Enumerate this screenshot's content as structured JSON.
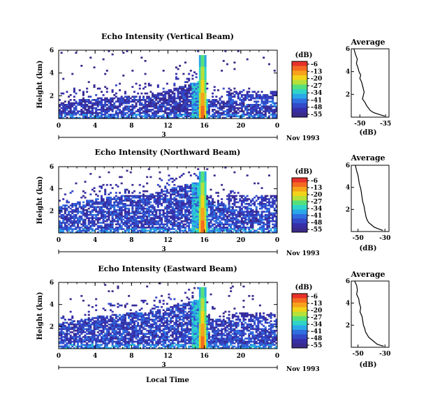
{
  "figure": {
    "x_axis_label": "Local Time",
    "date_label": "Nov 1993",
    "x_ticks": [
      "0",
      "4",
      "8",
      "12",
      "16",
      "20",
      "0"
    ],
    "x_sub_label": "3",
    "y_ticks": [
      "6",
      "4",
      "2"
    ],
    "y_axis_label": "Height (km)",
    "colorbar": {
      "unit": "(dB)",
      "ticks": [
        "-6",
        "-13",
        "-20",
        "-27",
        "-34",
        "-41",
        "-48",
        "-55"
      ],
      "colors": [
        "#e8312a",
        "#f46a22",
        "#f7a21b",
        "#f2d31a",
        "#b6e03a",
        "#55e07c",
        "#2fd4c6",
        "#2aa7e8",
        "#2f6fe0",
        "#3349c8",
        "#372fa8",
        "#3a2a8a"
      ]
    },
    "colors": {
      "low": "#3a3fc8",
      "mid": "#2fb0e8",
      "cyan": "#3fd9c9",
      "green": "#7ae35a",
      "yellow": "#f2d31a",
      "orange": "#f48a1c",
      "red": "#e8312a"
    }
  },
  "chart_data": [
    {
      "type": "heatmap",
      "title": "Echo Intensity (Vertical Beam)",
      "xlabel": "",
      "ylabel": "Height (km)",
      "xlim": [
        0,
        24
      ],
      "ylim": [
        0,
        6
      ],
      "color_range_db": [
        -55,
        -6
      ],
      "features": {
        "background_layer_top_km": 2.0,
        "layer_mean_db": -48,
        "plume_time_h": 15.8,
        "plume_top_km": 5.5,
        "plume_peak_db": -6,
        "evening_region_start_h": 18.5,
        "evening_region_top_km": 2.5,
        "evening_peak_db": -27
      }
    },
    {
      "type": "line",
      "title": "Average",
      "xlabel": "(dB)",
      "ylabel": "",
      "x_ticks": [
        "-50",
        "-35"
      ],
      "y_ticks": [
        "6",
        "4",
        "2"
      ],
      "xlim": [
        -55,
        -33
      ],
      "ylim": [
        0,
        6
      ],
      "series": [
        {
          "x": [
            -53.5,
            -52.5,
            -51.5,
            -52,
            -51,
            -50.5,
            -49.5,
            -50,
            -49,
            -48.5,
            -48,
            -47.5,
            -48,
            -48.5,
            -47,
            -46,
            -45,
            -44,
            -42,
            -40,
            -38,
            -35.5
          ],
          "y": [
            6.0,
            5.5,
            5.1,
            4.7,
            4.3,
            4.0,
            3.7,
            3.4,
            3.1,
            2.8,
            2.5,
            2.2,
            1.9,
            1.6,
            1.3,
            1.0,
            0.8,
            0.6,
            0.4,
            0.3,
            0.2,
            0.1
          ]
        }
      ]
    },
    {
      "type": "heatmap",
      "title": "Echo Intensity (Northward Beam)",
      "xlabel": "",
      "ylabel": "Height (km)",
      "xlim": [
        0,
        24
      ],
      "ylim": [
        0,
        6
      ],
      "color_range_db": [
        -55,
        -6
      ],
      "features": {
        "background_layer_top_km": 3.5,
        "layer_mean_db": -46,
        "plume_time_h": 15.8,
        "plume_top_km": 5.6,
        "plume_peak_db": -6,
        "evening_region_start_h": 18.5,
        "evening_region_top_km": 3.5,
        "evening_peak_db": -34
      }
    },
    {
      "type": "line",
      "title": "Average",
      "xlabel": "(dB)",
      "ylabel": "",
      "x_ticks": [
        "-50",
        "-30"
      ],
      "y_ticks": [
        "6",
        "4",
        "2"
      ],
      "xlim": [
        -55,
        -27
      ],
      "ylim": [
        0,
        6
      ],
      "series": [
        {
          "x": [
            -52,
            -51,
            -50,
            -49.5,
            -49,
            -48,
            -47.5,
            -47,
            -46.5,
            -45.5,
            -45,
            -44.5,
            -44,
            -43,
            -42,
            -40,
            -38,
            -36,
            -34,
            -31.5
          ],
          "y": [
            6.0,
            5.5,
            5.1,
            4.7,
            4.3,
            3.9,
            3.5,
            3.1,
            2.7,
            2.3,
            1.9,
            1.6,
            1.3,
            1.0,
            0.8,
            0.6,
            0.4,
            0.3,
            0.2,
            0.1
          ]
        }
      ]
    },
    {
      "type": "heatmap",
      "title": "Echo Intensity (Eastward Beam)",
      "xlabel": "Local Time",
      "ylabel": "Height (km)",
      "xlim": [
        0,
        24
      ],
      "ylim": [
        0,
        6
      ],
      "color_range_db": [
        -55,
        -6
      ],
      "features": {
        "background_layer_top_km": 3.3,
        "layer_mean_db": -46,
        "plume_time_h": 15.8,
        "plume_top_km": 5.6,
        "plume_peak_db": -6,
        "evening_region_start_h": 18.5,
        "evening_region_top_km": 3.3,
        "evening_peak_db": -34
      }
    },
    {
      "type": "line",
      "title": "Average",
      "xlabel": "(dB)",
      "ylabel": "",
      "x_ticks": [
        "-50",
        "-30"
      ],
      "y_ticks": [
        "6",
        "4",
        "2"
      ],
      "xlim": [
        -55,
        -27
      ],
      "ylim": [
        0,
        6
      ],
      "series": [
        {
          "x": [
            -52.5,
            -51,
            -50.5,
            -51,
            -49.5,
            -49,
            -48,
            -48.5,
            -47,
            -46.5,
            -46,
            -45,
            -44.5,
            -43,
            -42,
            -40,
            -38,
            -36,
            -34,
            -31
          ],
          "y": [
            6.0,
            5.6,
            5.2,
            4.8,
            4.4,
            4.0,
            3.6,
            3.2,
            2.8,
            2.4,
            2.0,
            1.7,
            1.4,
            1.1,
            0.9,
            0.7,
            0.5,
            0.3,
            0.2,
            0.1
          ]
        }
      ]
    }
  ]
}
